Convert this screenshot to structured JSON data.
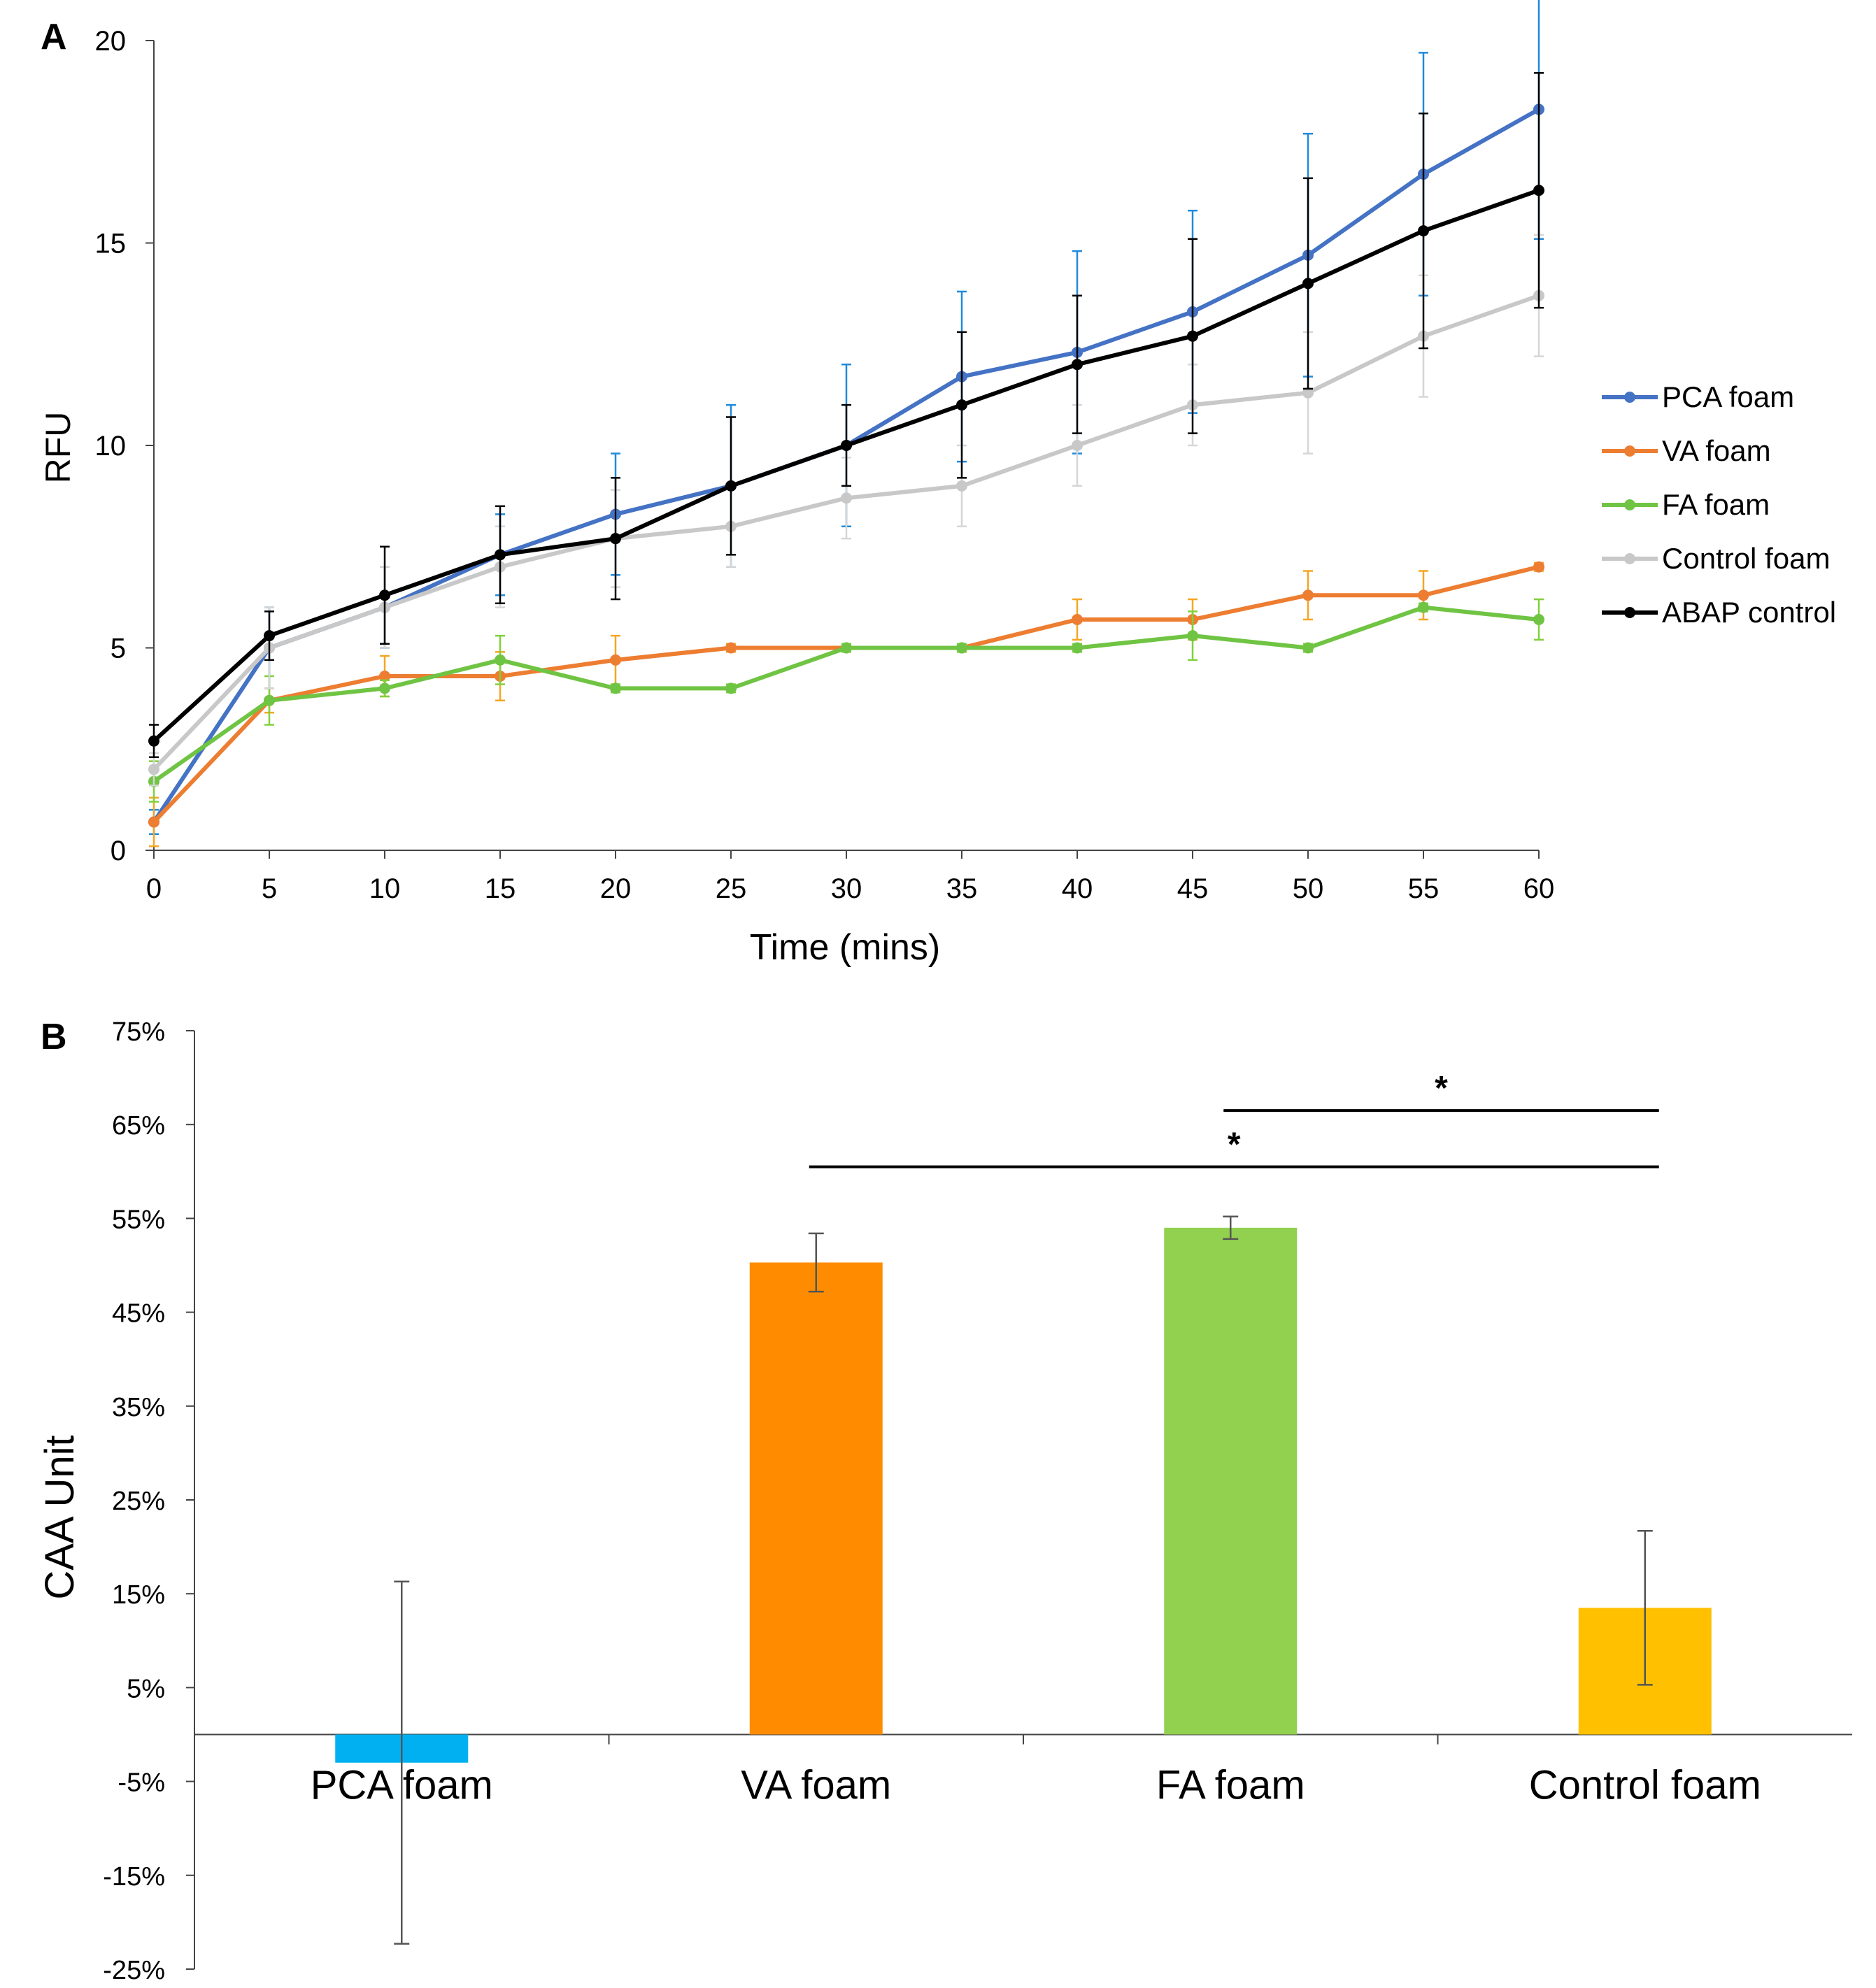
{
  "chart_data": [
    {
      "panel": "A",
      "type": "line",
      "title": "",
      "xlabel": "Time (mins)",
      "ylabel": "RFU",
      "x": [
        0,
        5,
        10,
        15,
        20,
        25,
        30,
        35,
        40,
        45,
        50,
        55,
        60
      ],
      "xlim": [
        0,
        60
      ],
      "ylim": [
        0,
        20
      ],
      "x_ticks": [
        0,
        5,
        10,
        15,
        20,
        25,
        30,
        35,
        40,
        45,
        50,
        55,
        60
      ],
      "y_ticks": [
        0,
        5,
        10,
        15,
        20
      ],
      "grid": false,
      "legend_position": "right",
      "series": [
        {
          "name": "PCA foam",
          "color": "#4472C4",
          "bar_color": "#1F8ADB",
          "values": [
            0.7,
            5.0,
            6.0,
            7.3,
            8.3,
            9.0,
            10.0,
            11.7,
            12.3,
            13.3,
            14.7,
            16.7,
            18.3
          ],
          "errors": [
            0.3,
            1.0,
            1.0,
            1.0,
            1.5,
            2.0,
            2.0,
            2.1,
            2.5,
            2.5,
            3.0,
            3.0,
            3.2
          ]
        },
        {
          "name": "VA foam",
          "color": "#ED7D31",
          "bar_color": "#F5A623",
          "values": [
            0.7,
            3.7,
            4.3,
            4.3,
            4.7,
            5.0,
            5.0,
            5.0,
            5.7,
            5.7,
            6.3,
            6.3,
            7.0
          ],
          "errors": [
            0.6,
            0.3,
            0.5,
            0.6,
            0.6,
            0.1,
            0.1,
            0.1,
            0.5,
            0.5,
            0.6,
            0.6,
            0.1
          ]
        },
        {
          "name": "FA foam",
          "color": "#70C443",
          "bar_color": "#7FD13B",
          "values": [
            1.7,
            3.7,
            4.0,
            4.7,
            4.0,
            4.0,
            5.0,
            5.0,
            5.0,
            5.3,
            5.0,
            6.0,
            5.7
          ],
          "errors": [
            0.5,
            0.6,
            0.2,
            0.6,
            0.1,
            0.1,
            0.1,
            0.1,
            0.1,
            0.6,
            0.1,
            0.1,
            0.5
          ]
        },
        {
          "name": "Control foam",
          "color": "#C8C8C8",
          "bar_color": "#D6D6D6",
          "values": [
            2.0,
            5.0,
            6.0,
            7.0,
            7.7,
            8.0,
            8.7,
            9.0,
            10.0,
            11.0,
            11.3,
            12.7,
            13.7
          ],
          "errors": [
            0.4,
            1.0,
            1.0,
            1.0,
            1.2,
            1.0,
            1.0,
            1.0,
            1.0,
            1.0,
            1.5,
            1.5,
            1.5
          ]
        },
        {
          "name": "ABAP control",
          "color": "#000000",
          "bar_color": "#000000",
          "values": [
            2.7,
            5.3,
            6.3,
            7.3,
            7.7,
            9.0,
            10.0,
            11.0,
            12.0,
            12.7,
            14.0,
            15.3,
            16.3
          ],
          "errors": [
            0.4,
            0.6,
            1.2,
            1.2,
            1.5,
            1.7,
            1.0,
            1.8,
            1.7,
            2.4,
            2.6,
            2.9,
            2.9
          ]
        }
      ]
    },
    {
      "panel": "B",
      "type": "bar",
      "title": "",
      "xlabel": "",
      "ylabel": "CAA Unit",
      "categories": [
        "PCA foam",
        "VA foam",
        "FA foam",
        "Control foam"
      ],
      "values": [
        -3.0,
        50.3,
        54.0,
        13.5
      ],
      "errors": [
        19.3,
        3.1,
        1.2,
        8.2
      ],
      "colors": [
        "#00B0F0",
        "#FF8C00",
        "#92D050",
        "#FFC000"
      ],
      "ylim": [
        -25,
        75
      ],
      "y_ticks": [
        75,
        65,
        55,
        45,
        35,
        25,
        15,
        5,
        -5,
        -15,
        -25
      ],
      "y_tick_labels": [
        "75%",
        "65%",
        "55%",
        "45%",
        "35%",
        "25%",
        "15%",
        "5%",
        "-5%",
        "-15%",
        "-25%"
      ],
      "grid": false,
      "annotations": [
        {
          "text": "*",
          "from": "FA foam",
          "to": "Control foam",
          "y": 66.5
        },
        {
          "text": "*",
          "from": "VA foam",
          "to": "Control foam",
          "y": 60.5
        }
      ]
    }
  ]
}
